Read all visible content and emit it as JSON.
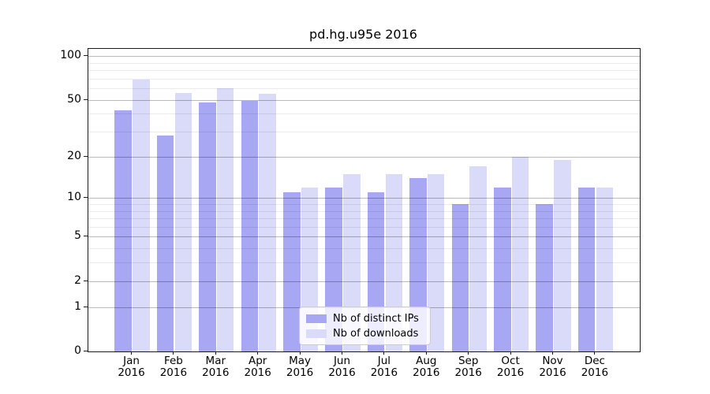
{
  "figure": {
    "title": "pd.hg.u95e 2016"
  },
  "chart_data": {
    "type": "bar",
    "title": "pd.hg.u95e 2016",
    "xlabel": "",
    "ylabel": "",
    "yscale": "log1p",
    "ylim": [
      0,
      112
    ],
    "grid": true,
    "legend_position": "lower center",
    "categories": [
      "Jan",
      "Feb",
      "Mar",
      "Apr",
      "May",
      "Jun",
      "Jul",
      "Aug",
      "Sep",
      "Oct",
      "Nov",
      "Dec"
    ],
    "category_year": "2016",
    "y_major_ticks": [
      0,
      1,
      2,
      5,
      10,
      20,
      50,
      100
    ],
    "y_minor_ticks": [
      3,
      4,
      6,
      7,
      8,
      9,
      30,
      40,
      60,
      70,
      80,
      90
    ],
    "series": [
      {
        "name": "Nb of distinct IPs",
        "color": "#a7a7f4",
        "values": [
          42,
          28,
          48,
          49,
          11,
          12,
          11,
          14,
          9,
          12,
          9,
          12
        ]
      },
      {
        "name": "Nb of downloads",
        "color": "#dadaf9",
        "values": [
          69,
          56,
          60,
          55,
          12,
          15,
          15,
          15,
          17,
          20,
          19,
          12
        ]
      }
    ]
  }
}
